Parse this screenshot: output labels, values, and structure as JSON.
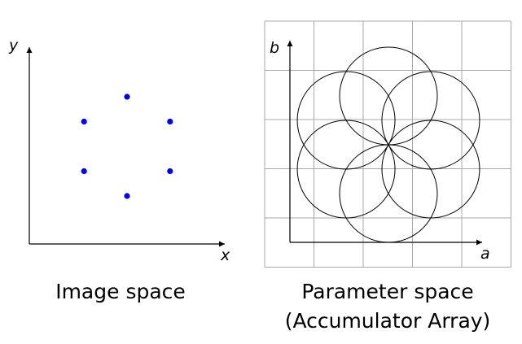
{
  "image_space": {
    "x_label": "x",
    "y_label": "y",
    "caption": "Image space",
    "points": [
      {
        "x": 0,
        "y": 1
      },
      {
        "x": 0.866,
        "y": 0.5
      },
      {
        "x": 0.866,
        "y": -0.5
      },
      {
        "x": 0,
        "y": -1
      },
      {
        "x": -0.866,
        "y": -0.5
      },
      {
        "x": -0.866,
        "y": 0.5
      }
    ],
    "point_color": "#0000ee"
  },
  "parameter_space": {
    "a_label": "a",
    "b_label": "b",
    "caption_line1": "Parameter space",
    "caption_line2": "(Accumulator Array)",
    "circle_centers": [
      {
        "a": 0,
        "b": 1
      },
      {
        "a": 0.866,
        "b": 0.5
      },
      {
        "a": 0.866,
        "b": -0.5
      },
      {
        "a": 0,
        "b": -1
      },
      {
        "a": -0.866,
        "b": -0.5
      },
      {
        "a": -0.866,
        "b": 0.5
      }
    ],
    "circle_radius": 1,
    "grid_color": "#a8a8a8"
  }
}
